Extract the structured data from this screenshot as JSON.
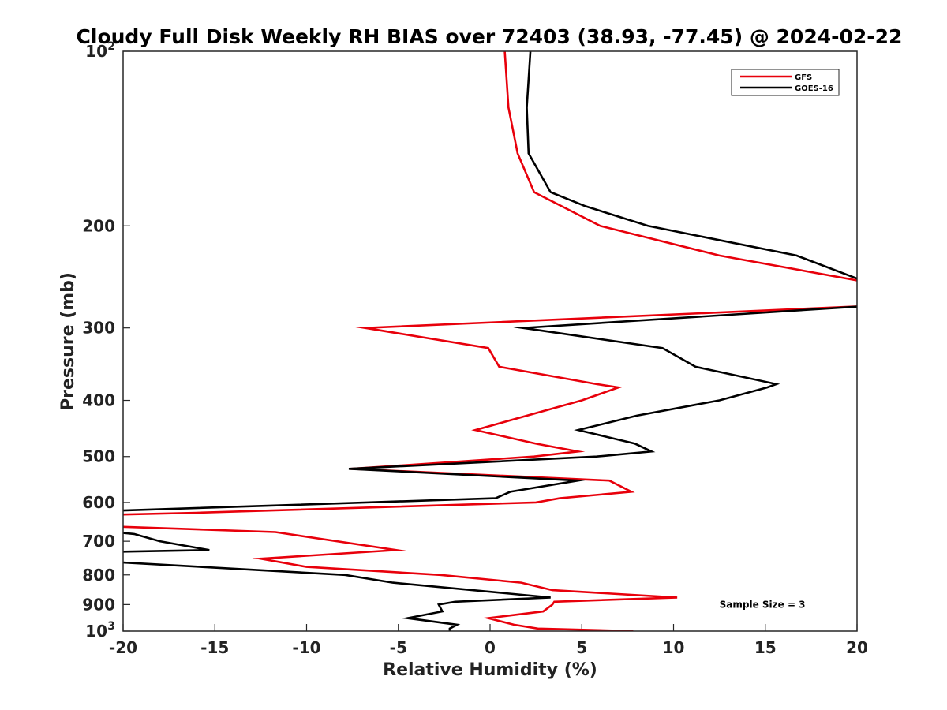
{
  "chart_data": {
    "type": "line",
    "title": "Cloudy Full Disk Weekly RH BIAS over 72403 (38.93, -77.45) @ 2024-02-22",
    "xlabel": "Relative Humidity (%)",
    "ylabel": "Pressure (mb)",
    "xlim": [
      -20,
      20
    ],
    "ylim": [
      100,
      1000
    ],
    "y_scale": "log",
    "y_reversed": true,
    "grid": false,
    "legend_position": "top-right",
    "x_ticks": [
      {
        "value": -20,
        "label": "-20"
      },
      {
        "value": -15,
        "label": "-15"
      },
      {
        "value": -10,
        "label": "-10"
      },
      {
        "value": -5,
        "label": "-5"
      },
      {
        "value": 0,
        "label": "0"
      },
      {
        "value": 5,
        "label": "5"
      },
      {
        "value": 10,
        "label": "10"
      },
      {
        "value": 15,
        "label": "15"
      },
      {
        "value": 20,
        "label": "20"
      }
    ],
    "y_ticks": [
      {
        "value": 100,
        "base": "10",
        "exp": "2"
      },
      {
        "value": 200,
        "label": "200"
      },
      {
        "value": 300,
        "label": "300"
      },
      {
        "value": 400,
        "label": "400"
      },
      {
        "value": 500,
        "label": "500"
      },
      {
        "value": 600,
        "label": "600"
      },
      {
        "value": 700,
        "label": "700"
      },
      {
        "value": 800,
        "label": "800"
      },
      {
        "value": 900,
        "label": "900"
      },
      {
        "value": 1000,
        "base": "10",
        "exp": "3"
      }
    ],
    "series": [
      {
        "name": "GFS",
        "color": "#e8000b",
        "points": [
          [
            0.8,
            100
          ],
          [
            1.0,
            125
          ],
          [
            1.5,
            150
          ],
          [
            2.4,
            175
          ],
          [
            3.9,
            185
          ],
          [
            6.0,
            200
          ],
          [
            12.5,
            225
          ],
          [
            20.5,
            250
          ],
          [
            20.5,
            275
          ],
          [
            -6.8,
            300
          ],
          [
            -0.1,
            325
          ],
          [
            0.5,
            350
          ],
          [
            5.8,
            375
          ],
          [
            7.0,
            380
          ],
          [
            5.0,
            400
          ],
          [
            -0.8,
            450
          ],
          [
            2.5,
            475
          ],
          [
            4.8,
            490
          ],
          [
            2.4,
            500
          ],
          [
            -7.6,
            525
          ],
          [
            6.5,
            550
          ],
          [
            7.7,
            575
          ],
          [
            3.8,
            590
          ],
          [
            2.5,
            600
          ],
          [
            -16.0,
            625
          ],
          [
            -20.5,
            630
          ],
          [
            -20.5,
            660
          ],
          [
            -11.7,
            675
          ],
          [
            -5.1,
            725
          ],
          [
            -12.5,
            750
          ],
          [
            -10.0,
            775
          ],
          [
            -2.7,
            800
          ],
          [
            1.7,
            825
          ],
          [
            3.4,
            850
          ],
          [
            10.2,
            875
          ],
          [
            3.5,
            890
          ],
          [
            3.4,
            900
          ],
          [
            2.9,
            925
          ],
          [
            -0.1,
            950
          ],
          [
            1.3,
            975
          ],
          [
            2.6,
            990
          ],
          [
            7.8,
            1000
          ]
        ]
      },
      {
        "name": "GOES-16",
        "color": "#000000",
        "points": [
          [
            2.2,
            100
          ],
          [
            2.0,
            125
          ],
          [
            2.1,
            150
          ],
          [
            3.3,
            175
          ],
          [
            5.2,
            185
          ],
          [
            8.6,
            200
          ],
          [
            16.7,
            225
          ],
          [
            20.5,
            250
          ],
          [
            20.5,
            275
          ],
          [
            1.8,
            300
          ],
          [
            9.4,
            325
          ],
          [
            11.2,
            350
          ],
          [
            15.6,
            375
          ],
          [
            15.1,
            380
          ],
          [
            12.5,
            400
          ],
          [
            8.0,
            425
          ],
          [
            4.8,
            450
          ],
          [
            7.9,
            475
          ],
          [
            8.8,
            490
          ],
          [
            5.8,
            500
          ],
          [
            -7.7,
            525
          ],
          [
            4.8,
            550
          ],
          [
            1.1,
            575
          ],
          [
            0.3,
            590
          ],
          [
            -20.5,
            620
          ],
          [
            -20.5,
            675
          ],
          [
            -19.4,
            680
          ],
          [
            -18.0,
            700
          ],
          [
            -15.3,
            725
          ],
          [
            -20.5,
            730
          ],
          [
            -20.5,
            760
          ],
          [
            -7.9,
            800
          ],
          [
            -5.3,
            825
          ],
          [
            3.3,
            875
          ],
          [
            -1.9,
            890
          ],
          [
            -2.8,
            900
          ],
          [
            -2.6,
            925
          ],
          [
            -4.5,
            950
          ],
          [
            -1.8,
            975
          ],
          [
            -2.2,
            990
          ],
          [
            -2.2,
            1000
          ]
        ]
      }
    ],
    "annotations": [
      {
        "text": "Sample Size = 3",
        "x": 12.5,
        "y": 900
      }
    ]
  }
}
